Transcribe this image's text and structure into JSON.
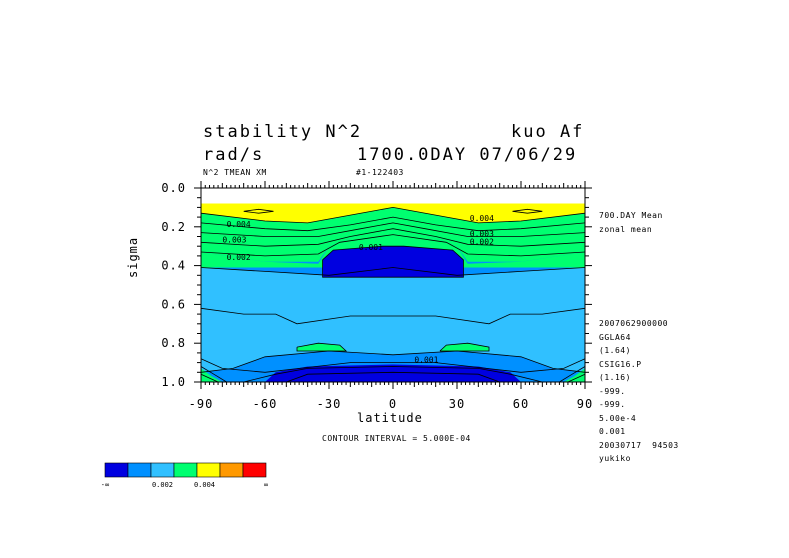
{
  "header": {
    "title_left": "stability N^2",
    "title_right": "kuo Af",
    "units": "rad/s",
    "time_label": "1700.0DAY 07/06/29",
    "variable_label": "N^2 TMEAN XM",
    "run_label": "#1-122403",
    "contour_interval": "CONTOUR INTERVAL = 5.000E-04"
  },
  "side_info": [
    "700.DAY Mean",
    "zonal mean",
    "",
    "",
    "",
    "",
    "",
    "",
    "2007062900000",
    "GGLA64",
    "(1.64)",
    "CSIG16.P",
    "(1.16)",
    "-999.",
    "-999.",
    "5.00e-4",
    "0.001",
    "20030717  94503",
    "yukiko"
  ],
  "colorbar": {
    "colors": [
      "#0000e0",
      "#0090ff",
      "#30c0ff",
      "#00ff70",
      "#ffff00",
      "#ff9900",
      "#ff0000"
    ],
    "labels": [
      "-∞",
      "0.002",
      "0.004",
      "∞"
    ]
  },
  "chart_data": {
    "type": "contour",
    "xlabel": "latitude",
    "ylabel": "sigma",
    "xlim": [
      -90,
      90
    ],
    "ylim": [
      1.0,
      0.0
    ],
    "x_ticks": [
      -90,
      -60,
      -30,
      0,
      30,
      60,
      90
    ],
    "x_tick_labels": [
      "-90",
      "-60",
      "-30",
      "0",
      "30",
      "60",
      "90"
    ],
    "y_ticks": [
      0.0,
      0.2,
      0.4,
      0.6,
      0.8,
      1.0
    ],
    "y_tick_labels": [
      "0.0",
      "0.2",
      "0.4",
      "0.6",
      "0.8",
      "1.0"
    ],
    "contour_interval": 0.0005,
    "contour_labels": [
      {
        "text": "0.004",
        "lat": -78,
        "sigma": 0.2
      },
      {
        "text": "0.003",
        "lat": -80,
        "sigma": 0.28
      },
      {
        "text": "0.002",
        "lat": -78,
        "sigma": 0.37
      },
      {
        "text": "0.001",
        "lat": -16,
        "sigma": 0.32
      },
      {
        "text": "0.004",
        "lat": 36,
        "sigma": 0.17
      },
      {
        "text": "0.003",
        "lat": 36,
        "sigma": 0.25
      },
      {
        "text": "0.002",
        "lat": 36,
        "sigma": 0.29
      },
      {
        "text": "0.001",
        "lat": 10,
        "sigma": 0.9
      }
    ],
    "regions": [
      {
        "fill": "#0090ff",
        "points": [
          [
            -90,
            1.0
          ],
          [
            90,
            1.0
          ],
          [
            90,
            0.4
          ],
          [
            -90,
            0.4
          ]
        ]
      },
      {
        "fill": "#30c0ff",
        "points": [
          [
            -90,
            0.41
          ],
          [
            -60,
            0.43
          ],
          [
            -30,
            0.45
          ],
          [
            0,
            0.41
          ],
          [
            30,
            0.45
          ],
          [
            60,
            0.43
          ],
          [
            90,
            0.41
          ],
          [
            90,
            0.95
          ],
          [
            75,
            0.93
          ],
          [
            60,
            0.87
          ],
          [
            30,
            0.84
          ],
          [
            0,
            0.86
          ],
          [
            -30,
            0.84
          ],
          [
            -60,
            0.87
          ],
          [
            -75,
            0.93
          ],
          [
            -90,
            0.95
          ]
        ]
      },
      {
        "fill": "#00ff70",
        "points": [
          [
            -90,
            0.33
          ],
          [
            -60,
            0.38
          ],
          [
            -35,
            0.39
          ],
          [
            -30,
            0.3
          ],
          [
            -15,
            0.24
          ],
          [
            0,
            0.21
          ],
          [
            15,
            0.24
          ],
          [
            30,
            0.3
          ],
          [
            35,
            0.39
          ],
          [
            60,
            0.38
          ],
          [
            90,
            0.33
          ],
          [
            90,
            0.41
          ],
          [
            -90,
            0.41
          ]
        ]
      },
      {
        "fill": "#00ff70",
        "points": [
          [
            -90,
            0.13
          ],
          [
            -60,
            0.17
          ],
          [
            -40,
            0.18
          ],
          [
            -30,
            0.16
          ],
          [
            0,
            0.1
          ],
          [
            30,
            0.16
          ],
          [
            40,
            0.18
          ],
          [
            60,
            0.17
          ],
          [
            90,
            0.13
          ],
          [
            90,
            0.33
          ],
          [
            60,
            0.38
          ],
          [
            35,
            0.38
          ],
          [
            30,
            0.3
          ],
          [
            15,
            0.24
          ],
          [
            0,
            0.21
          ],
          [
            -15,
            0.24
          ],
          [
            -30,
            0.3
          ],
          [
            -35,
            0.38
          ],
          [
            -60,
            0.38
          ],
          [
            -90,
            0.33
          ]
        ]
      },
      {
        "fill": "#ffff00",
        "points": [
          [
            -90,
            0.08
          ],
          [
            90,
            0.08
          ],
          [
            90,
            0.13
          ],
          [
            60,
            0.17
          ],
          [
            40,
            0.18
          ],
          [
            30,
            0.16
          ],
          [
            0,
            0.1
          ],
          [
            -30,
            0.16
          ],
          [
            -40,
            0.18
          ],
          [
            -60,
            0.17
          ],
          [
            -90,
            0.13
          ]
        ]
      },
      {
        "fill": "#0000e0",
        "points": [
          [
            -33,
            0.37
          ],
          [
            -28,
            0.32
          ],
          [
            -5,
            0.3
          ],
          [
            5,
            0.3
          ],
          [
            28,
            0.32
          ],
          [
            33,
            0.37
          ],
          [
            33,
            0.46
          ],
          [
            -33,
            0.46
          ]
        ]
      },
      {
        "fill": "#0000e0",
        "points": [
          [
            -60,
            1.0
          ],
          [
            -55,
            0.95
          ],
          [
            -40,
            0.92
          ],
          [
            0,
            0.91
          ],
          [
            40,
            0.92
          ],
          [
            55,
            0.95
          ],
          [
            60,
            1.0
          ]
        ]
      },
      {
        "fill": "#00ff70",
        "points": [
          [
            -45,
            0.82
          ],
          [
            -35,
            0.8
          ],
          [
            -25,
            0.81
          ],
          [
            -22,
            0.84
          ],
          [
            -45,
            0.84
          ]
        ]
      },
      {
        "fill": "#00ff70",
        "points": [
          [
            22,
            0.84
          ],
          [
            25,
            0.81
          ],
          [
            35,
            0.8
          ],
          [
            45,
            0.82
          ],
          [
            45,
            0.84
          ]
        ]
      },
      {
        "fill": "#00ff70",
        "points": [
          [
            -90,
            1.0
          ],
          [
            -90,
            0.93
          ],
          [
            -85,
            0.97
          ],
          [
            -80,
            1.0
          ]
        ]
      },
      {
        "fill": "#00ff70",
        "points": [
          [
            90,
            1.0
          ],
          [
            90,
            0.93
          ],
          [
            85,
            0.97
          ],
          [
            80,
            1.0
          ]
        ]
      }
    ],
    "contour_lines": [
      [
        [
          -90,
          0.13
        ],
        [
          -60,
          0.17
        ],
        [
          -40,
          0.18
        ],
        [
          -30,
          0.16
        ],
        [
          0,
          0.1
        ],
        [
          30,
          0.16
        ],
        [
          40,
          0.18
        ],
        [
          60,
          0.17
        ],
        [
          90,
          0.13
        ]
      ],
      [
        [
          -90,
          0.18
        ],
        [
          -60,
          0.21
        ],
        [
          -40,
          0.22
        ],
        [
          -20,
          0.19
        ],
        [
          0,
          0.15
        ],
        [
          20,
          0.19
        ],
        [
          40,
          0.22
        ],
        [
          60,
          0.21
        ],
        [
          90,
          0.18
        ]
      ],
      [
        [
          -90,
          0.23
        ],
        [
          -60,
          0.25
        ],
        [
          -35,
          0.25
        ],
        [
          -15,
          0.21
        ],
        [
          0,
          0.18
        ],
        [
          15,
          0.21
        ],
        [
          35,
          0.25
        ],
        [
          60,
          0.25
        ],
        [
          90,
          0.23
        ]
      ],
      [
        [
          -90,
          0.28
        ],
        [
          -60,
          0.3
        ],
        [
          -35,
          0.29
        ],
        [
          -20,
          0.25
        ],
        [
          0,
          0.21
        ],
        [
          20,
          0.25
        ],
        [
          35,
          0.29
        ],
        [
          60,
          0.3
        ],
        [
          90,
          0.28
        ]
      ],
      [
        [
          -90,
          0.33
        ],
        [
          -60,
          0.35
        ],
        [
          -35,
          0.34
        ],
        [
          -25,
          0.28
        ],
        [
          0,
          0.24
        ],
        [
          25,
          0.28
        ],
        [
          35,
          0.34
        ],
        [
          60,
          0.35
        ],
        [
          90,
          0.33
        ]
      ],
      [
        [
          -90,
          0.41
        ],
        [
          -60,
          0.43
        ],
        [
          -30,
          0.45
        ],
        [
          0,
          0.41
        ],
        [
          30,
          0.45
        ],
        [
          60,
          0.43
        ],
        [
          90,
          0.41
        ]
      ],
      [
        [
          -90,
          0.62
        ],
        [
          -70,
          0.65
        ],
        [
          -55,
          0.65
        ],
        [
          -45,
          0.7
        ],
        [
          -20,
          0.66
        ],
        [
          0,
          0.66
        ],
        [
          20,
          0.66
        ],
        [
          45,
          0.7
        ],
        [
          55,
          0.65
        ],
        [
          70,
          0.65
        ],
        [
          90,
          0.62
        ]
      ],
      [
        [
          -90,
          0.95
        ],
        [
          -75,
          0.93
        ],
        [
          -60,
          0.87
        ],
        [
          -30,
          0.84
        ],
        [
          0,
          0.86
        ],
        [
          30,
          0.84
        ],
        [
          60,
          0.87
        ],
        [
          75,
          0.93
        ],
        [
          90,
          0.95
        ]
      ],
      [
        [
          -90,
          0.88
        ],
        [
          -80,
          0.93
        ],
        [
          -60,
          0.95
        ],
        [
          -20,
          0.9
        ],
        [
          0,
          0.9
        ],
        [
          20,
          0.9
        ],
        [
          60,
          0.95
        ],
        [
          80,
          0.93
        ],
        [
          90,
          0.88
        ]
      ],
      [
        [
          -70,
          1.0
        ],
        [
          -55,
          0.96
        ],
        [
          -40,
          0.93
        ],
        [
          0,
          0.92
        ],
        [
          40,
          0.93
        ],
        [
          55,
          0.96
        ],
        [
          70,
          1.0
        ]
      ],
      [
        [
          -50,
          1.0
        ],
        [
          -40,
          0.96
        ],
        [
          0,
          0.95
        ],
        [
          40,
          0.96
        ],
        [
          50,
          1.0
        ]
      ],
      [
        [
          -33,
          0.37
        ],
        [
          -28,
          0.32
        ],
        [
          -5,
          0.3
        ],
        [
          5,
          0.3
        ],
        [
          28,
          0.32
        ],
        [
          33,
          0.37
        ],
        [
          33,
          0.46
        ],
        [
          -33,
          0.46
        ],
        [
          -33,
          0.37
        ]
      ],
      [
        [
          -45,
          0.82
        ],
        [
          -35,
          0.8
        ],
        [
          -25,
          0.81
        ],
        [
          -22,
          0.84
        ],
        [
          -45,
          0.84
        ],
        [
          -45,
          0.82
        ]
      ],
      [
        [
          22,
          0.84
        ],
        [
          25,
          0.81
        ],
        [
          35,
          0.8
        ],
        [
          45,
          0.82
        ],
        [
          45,
          0.84
        ],
        [
          22,
          0.84
        ]
      ],
      [
        [
          -70,
          0.12
        ],
        [
          -63,
          0.11
        ],
        [
          -56,
          0.12
        ],
        [
          -63,
          0.13
        ],
        [
          -70,
          0.12
        ]
      ],
      [
        [
          56,
          0.12
        ],
        [
          63,
          0.11
        ],
        [
          70,
          0.12
        ],
        [
          63,
          0.13
        ],
        [
          56,
          0.12
        ]
      ],
      [
        [
          -90,
          0.96
        ],
        [
          -86,
          0.98
        ],
        [
          -82,
          1.0
        ]
      ],
      [
        [
          -90,
          0.92
        ],
        [
          -84,
          0.96
        ],
        [
          -78,
          1.0
        ]
      ],
      [
        [
          90,
          0.96
        ],
        [
          86,
          0.98
        ],
        [
          82,
          1.0
        ]
      ],
      [
        [
          90,
          0.92
        ],
        [
          84,
          0.96
        ],
        [
          78,
          1.0
        ]
      ]
    ]
  }
}
